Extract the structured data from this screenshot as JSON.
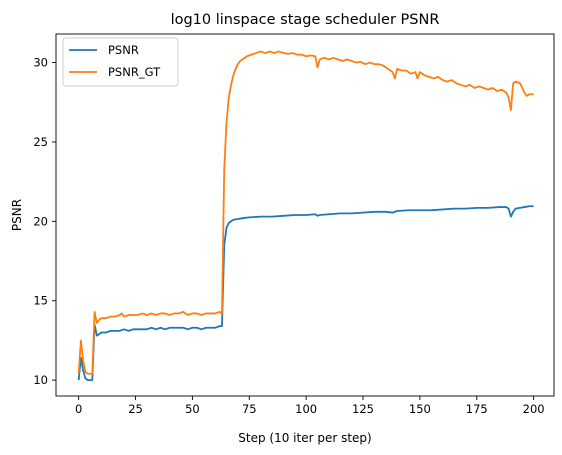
{
  "chart_data": {
    "type": "line",
    "title": "log10 linspace stage scheduler PSNR",
    "xlabel": "Step (10 iter per step)",
    "ylabel": "PSNR",
    "xlim": [
      -9.95,
      208.95
    ],
    "ylim": [
      9.0,
      31.8
    ],
    "xticks": [
      0,
      25,
      50,
      75,
      100,
      125,
      150,
      175,
      200
    ],
    "yticks": [
      10,
      15,
      20,
      25,
      30
    ],
    "grid": false,
    "legend_position": "top-left",
    "series": [
      {
        "name": "PSNR",
        "color": "#1f77b4",
        "points": [
          [
            0,
            10.0
          ],
          [
            1,
            11.4
          ],
          [
            2,
            10.6
          ],
          [
            3,
            10.1
          ],
          [
            4,
            10.0
          ],
          [
            5,
            10.0
          ],
          [
            6,
            10.0
          ],
          [
            7,
            13.5
          ],
          [
            8,
            12.8
          ],
          [
            9,
            12.9
          ],
          [
            10,
            13.0
          ],
          [
            12,
            13.0
          ],
          [
            14,
            13.1
          ],
          [
            16,
            13.1
          ],
          [
            18,
            13.1
          ],
          [
            20,
            13.2
          ],
          [
            22,
            13.1
          ],
          [
            24,
            13.2
          ],
          [
            26,
            13.2
          ],
          [
            28,
            13.2
          ],
          [
            30,
            13.2
          ],
          [
            32,
            13.3
          ],
          [
            34,
            13.2
          ],
          [
            36,
            13.3
          ],
          [
            38,
            13.2
          ],
          [
            40,
            13.3
          ],
          [
            42,
            13.3
          ],
          [
            44,
            13.3
          ],
          [
            46,
            13.3
          ],
          [
            48,
            13.2
          ],
          [
            50,
            13.3
          ],
          [
            52,
            13.3
          ],
          [
            54,
            13.2
          ],
          [
            56,
            13.3
          ],
          [
            58,
            13.3
          ],
          [
            60,
            13.3
          ],
          [
            62,
            13.4
          ],
          [
            63,
            13.4
          ],
          [
            64,
            18.5
          ],
          [
            65,
            19.6
          ],
          [
            66,
            19.9
          ],
          [
            67,
            20.0
          ],
          [
            68,
            20.1
          ],
          [
            70,
            20.15
          ],
          [
            72,
            20.2
          ],
          [
            75,
            20.25
          ],
          [
            80,
            20.3
          ],
          [
            85,
            20.3
          ],
          [
            90,
            20.35
          ],
          [
            95,
            20.4
          ],
          [
            100,
            20.4
          ],
          [
            104,
            20.45
          ],
          [
            105,
            20.35
          ],
          [
            106,
            20.4
          ],
          [
            110,
            20.45
          ],
          [
            115,
            20.5
          ],
          [
            120,
            20.5
          ],
          [
            125,
            20.55
          ],
          [
            130,
            20.6
          ],
          [
            135,
            20.6
          ],
          [
            138,
            20.55
          ],
          [
            140,
            20.65
          ],
          [
            145,
            20.7
          ],
          [
            150,
            20.7
          ],
          [
            155,
            20.7
          ],
          [
            160,
            20.75
          ],
          [
            165,
            20.8
          ],
          [
            170,
            20.8
          ],
          [
            175,
            20.85
          ],
          [
            180,
            20.85
          ],
          [
            185,
            20.9
          ],
          [
            188,
            20.9
          ],
          [
            189,
            20.8
          ],
          [
            190,
            20.3
          ],
          [
            191,
            20.6
          ],
          [
            192,
            20.8
          ],
          [
            194,
            20.85
          ],
          [
            196,
            20.9
          ],
          [
            198,
            20.95
          ],
          [
            200,
            20.95
          ]
        ]
      },
      {
        "name": "PSNR_GT",
        "color": "#ff7f0e",
        "points": [
          [
            0,
            10.4
          ],
          [
            1,
            12.5
          ],
          [
            2,
            11.2
          ],
          [
            3,
            10.5
          ],
          [
            4,
            10.4
          ],
          [
            5,
            10.4
          ],
          [
            6,
            10.4
          ],
          [
            7,
            14.3
          ],
          [
            8,
            13.6
          ],
          [
            9,
            13.8
          ],
          [
            10,
            13.9
          ],
          [
            12,
            13.9
          ],
          [
            14,
            14.0
          ],
          [
            16,
            14.0
          ],
          [
            18,
            14.1
          ],
          [
            19,
            14.2
          ],
          [
            20,
            14.0
          ],
          [
            22,
            14.1
          ],
          [
            24,
            14.1
          ],
          [
            26,
            14.1
          ],
          [
            28,
            14.2
          ],
          [
            30,
            14.1
          ],
          [
            32,
            14.2
          ],
          [
            34,
            14.1
          ],
          [
            36,
            14.2
          ],
          [
            38,
            14.2
          ],
          [
            40,
            14.1
          ],
          [
            42,
            14.2
          ],
          [
            44,
            14.2
          ],
          [
            46,
            14.3
          ],
          [
            48,
            14.1
          ],
          [
            50,
            14.2
          ],
          [
            52,
            14.2
          ],
          [
            54,
            14.1
          ],
          [
            56,
            14.2
          ],
          [
            58,
            14.2
          ],
          [
            60,
            14.2
          ],
          [
            62,
            14.3
          ],
          [
            63,
            14.2
          ],
          [
            64,
            23.3
          ],
          [
            65,
            26.2
          ],
          [
            66,
            27.8
          ],
          [
            67,
            28.6
          ],
          [
            68,
            29.2
          ],
          [
            69,
            29.6
          ],
          [
            70,
            29.9
          ],
          [
            71,
            30.1
          ],
          [
            72,
            30.2
          ],
          [
            74,
            30.4
          ],
          [
            76,
            30.5
          ],
          [
            78,
            30.6
          ],
          [
            80,
            30.7
          ],
          [
            82,
            30.6
          ],
          [
            84,
            30.7
          ],
          [
            86,
            30.6
          ],
          [
            88,
            30.7
          ],
          [
            90,
            30.6
          ],
          [
            92,
            30.55
          ],
          [
            94,
            30.6
          ],
          [
            96,
            30.5
          ],
          [
            98,
            30.5
          ],
          [
            100,
            30.4
          ],
          [
            102,
            30.45
          ],
          [
            104,
            30.4
          ],
          [
            105,
            29.7
          ],
          [
            106,
            30.2
          ],
          [
            108,
            30.3
          ],
          [
            110,
            30.2
          ],
          [
            112,
            30.3
          ],
          [
            114,
            30.2
          ],
          [
            116,
            30.1
          ],
          [
            118,
            30.2
          ],
          [
            120,
            30.1
          ],
          [
            122,
            30.0
          ],
          [
            124,
            30.05
          ],
          [
            126,
            29.9
          ],
          [
            128,
            30.0
          ],
          [
            130,
            29.9
          ],
          [
            132,
            29.9
          ],
          [
            134,
            29.8
          ],
          [
            136,
            29.6
          ],
          [
            138,
            29.4
          ],
          [
            139,
            29.0
          ],
          [
            140,
            29.6
          ],
          [
            142,
            29.5
          ],
          [
            144,
            29.5
          ],
          [
            146,
            29.3
          ],
          [
            148,
            29.4
          ],
          [
            149,
            29.0
          ],
          [
            150,
            29.4
          ],
          [
            152,
            29.2
          ],
          [
            154,
            29.1
          ],
          [
            156,
            29.0
          ],
          [
            158,
            29.1
          ],
          [
            160,
            28.9
          ],
          [
            162,
            28.8
          ],
          [
            164,
            28.9
          ],
          [
            166,
            28.7
          ],
          [
            168,
            28.6
          ],
          [
            170,
            28.5
          ],
          [
            172,
            28.6
          ],
          [
            174,
            28.4
          ],
          [
            176,
            28.5
          ],
          [
            178,
            28.4
          ],
          [
            180,
            28.3
          ],
          [
            182,
            28.4
          ],
          [
            184,
            28.2
          ],
          [
            186,
            28.3
          ],
          [
            188,
            28.1
          ],
          [
            189,
            27.8
          ],
          [
            190,
            27.0
          ],
          [
            191,
            28.7
          ],
          [
            192,
            28.8
          ],
          [
            194,
            28.7
          ],
          [
            196,
            28.1
          ],
          [
            197,
            27.9
          ],
          [
            198,
            28.0
          ],
          [
            200,
            28.0
          ]
        ]
      }
    ]
  }
}
